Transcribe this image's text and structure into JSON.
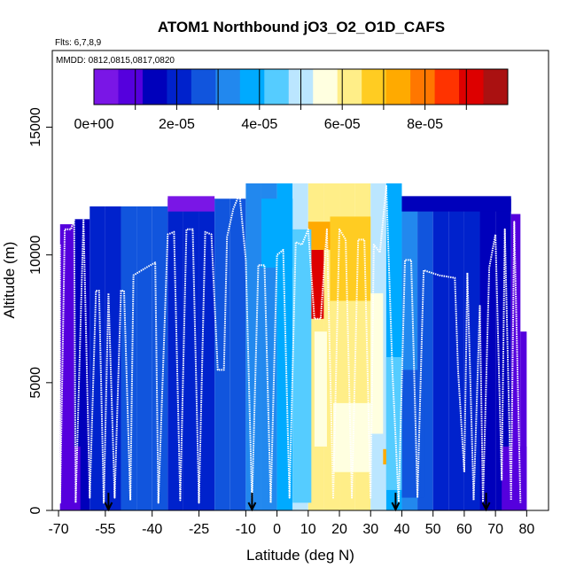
{
  "chart_data": {
    "type": "heatmap",
    "title": "ATOM1 Northbound jO3_O2_O1D_CAFS",
    "subtitle_flights": "Flts: 6,7,8,9",
    "subtitle_dates": "MMDD: 0812,0815,0817,0820",
    "xlabel": "Latitude (deg N)",
    "ylabel": "Altitude (m)",
    "xlim": [
      -72,
      87
    ],
    "ylim": [
      0,
      18000
    ],
    "x_ticks": [
      -70,
      -55,
      -40,
      -25,
      -10,
      0,
      10,
      20,
      30,
      40,
      50,
      60,
      70,
      80
    ],
    "x_tick_labels": [
      "-70",
      "-55",
      "-40",
      "-25",
      "-10",
      "0",
      "10",
      "20",
      "30",
      "40",
      "50",
      "60",
      "70",
      "80"
    ],
    "y_ticks": [
      0,
      5000,
      10000,
      15000
    ],
    "y_tick_labels": [
      "0",
      "5000",
      "10000",
      "15000"
    ],
    "colorbar": {
      "min": 0,
      "max": 0.0001,
      "tick_values": [
        0,
        2e-05,
        4e-05,
        6e-05,
        8e-05
      ],
      "tick_labels": [
        "0e+00",
        "2e-05",
        "4e-05",
        "6e-05",
        "8e-05"
      ],
      "colors": [
        "#7a16e6",
        "#5500dd",
        "#0000bb",
        "#0022cc",
        "#1155dd",
        "#2288ee",
        "#00aaff",
        "#55ccff",
        "#bbe6ff",
        "#ffffe0",
        "#ffee88",
        "#ffcc22",
        "#ffaa00",
        "#ff7700",
        "#ff3300",
        "#dd0000",
        "#aa1111"
      ]
    },
    "flight_markers_lat": [
      -54,
      -8,
      38,
      67
    ],
    "columns": [
      {
        "x0": -69.5,
        "x1": -65,
        "top": 11200,
        "v": 1e-05
      },
      {
        "x0": -65,
        "x1": -60,
        "top": 11400,
        "v": 1.2e-05
      },
      {
        "x0": -60,
        "x1": -55,
        "top": 11900,
        "v": 1.8e-05
      },
      {
        "x0": -55,
        "x1": -50,
        "top": 11900,
        "v": 2.2e-05
      },
      {
        "x0": -50,
        "x1": -45,
        "top": 11900,
        "v": 2.4e-05
      },
      {
        "x0": -45,
        "x1": -40,
        "top": 11900,
        "v": 2.4e-05
      },
      {
        "x0": -40,
        "x1": -35,
        "top": 11900,
        "v": 2.4e-05
      },
      {
        "x0": -35,
        "x1": -30,
        "top": 12200,
        "v": 2.2e-05
      },
      {
        "x0": -30,
        "x1": -25,
        "top": 12200,
        "v": 2e-05
      },
      {
        "x0": -25,
        "x1": -20,
        "top": 12200,
        "v": 2.2e-05
      },
      {
        "x0": -20,
        "x1": -15,
        "top": 12200,
        "v": 2.4e-05
      },
      {
        "x0": -15,
        "x1": -10,
        "top": 12200,
        "v": 2.6e-05
      },
      {
        "x0": -10,
        "x1": -5,
        "top": 12800,
        "v": 3e-05
      },
      {
        "x0": -5,
        "x1": 0,
        "top": 12800,
        "v": 3.4e-05
      },
      {
        "x0": 0,
        "x1": 5,
        "top": 12800,
        "v": 4e-05
      },
      {
        "x0": 5,
        "x1": 10,
        "top": 12800,
        "v": 4.8e-05
      },
      {
        "x0": 10,
        "x1": 15,
        "top": 12800,
        "v": 6.4e-05
      },
      {
        "x0": 15,
        "x1": 20,
        "top": 12800,
        "v": 6e-05
      },
      {
        "x0": 20,
        "x1": 25,
        "top": 12800,
        "v": 6.2e-05
      },
      {
        "x0": 25,
        "x1": 30,
        "top": 12800,
        "v": 6e-05
      },
      {
        "x0": 30,
        "x1": 35,
        "top": 12800,
        "v": 5.2e-05
      },
      {
        "x0": 35,
        "x1": 40,
        "top": 12800,
        "v": 4e-05
      },
      {
        "x0": 40,
        "x1": 45,
        "top": 12200,
        "v": 3e-05
      },
      {
        "x0": 45,
        "x1": 50,
        "top": 12200,
        "v": 2.4e-05
      },
      {
        "x0": 50,
        "x1": 55,
        "top": 12200,
        "v": 2.2e-05
      },
      {
        "x0": 55,
        "x1": 60,
        "top": 12200,
        "v": 2e-05
      },
      {
        "x0": 60,
        "x1": 65,
        "top": 12200,
        "v": 1.8e-05
      },
      {
        "x0": 65,
        "x1": 70,
        "top": 12200,
        "v": 1.6e-05
      },
      {
        "x0": 70,
        "x1": 75,
        "top": 12200,
        "v": 1.4e-05
      },
      {
        "x0": 75,
        "x1": 78,
        "top": 11600,
        "v": 1e-05
      },
      {
        "x0": 78,
        "x1": 80,
        "top": 7000,
        "v": 6e-06
      }
    ],
    "patches": [
      {
        "x0": 11,
        "x1": 15,
        "y0": 7500,
        "y1": 10200,
        "v": 9e-05
      },
      {
        "x0": 10,
        "x1": 18,
        "y0": 10200,
        "y1": 11300,
        "v": 7.2e-05
      },
      {
        "x0": 17,
        "x1": 30,
        "y0": 8200,
        "y1": 11500,
        "v": 6.8e-05
      },
      {
        "x0": 15,
        "x1": 30,
        "y0": 4200,
        "y1": 8200,
        "v": 6.2e-05
      },
      {
        "x0": 12,
        "x1": 16,
        "y0": 2500,
        "y1": 7000,
        "v": 5.6e-05
      },
      {
        "x0": 18,
        "x1": 30,
        "y0": 1500,
        "y1": 4200,
        "v": 5.8e-05
      },
      {
        "x0": 30,
        "x1": 34,
        "y0": 3000,
        "y1": 8500,
        "v": 5.4e-05
      },
      {
        "x0": 34,
        "x1": 35.5,
        "y0": 1800,
        "y1": 2400,
        "v": 7.2e-05
      },
      {
        "x0": 5,
        "x1": 11,
        "y0": 300,
        "y1": 11000,
        "v": 4.2e-05
      },
      {
        "x0": 35,
        "x1": 40,
        "y0": 800,
        "y1": 6000,
        "v": 4.4e-05
      },
      {
        "x0": -5,
        "x1": 5,
        "y0": 9500,
        "y1": 12200,
        "v": 3.8e-05
      },
      {
        "x0": 40,
        "x1": 47,
        "y0": 500,
        "y1": 5500,
        "v": 2.8e-05
      },
      {
        "x0": -69.5,
        "x1": -63,
        "y0": 0,
        "y1": 2500,
        "v": 8e-06
      },
      {
        "x0": 72,
        "x1": 80,
        "y0": 0,
        "y1": 2500,
        "v": 6e-06
      },
      {
        "x0": -35,
        "x1": -20,
        "y0": 11700,
        "y1": 12300,
        "v": 4e-06
      },
      {
        "x0": 40,
        "x1": 75,
        "y0": 11700,
        "y1": 12300,
        "v": 1.2e-05
      }
    ],
    "flight_track": [
      [
        -69.5,
        10400
      ],
      [
        -69.5,
        300
      ],
      [
        -68,
        11000
      ],
      [
        -66,
        11000
      ],
      [
        -65,
        11400
      ],
      [
        -64.5,
        300
      ],
      [
        -62,
        11400
      ],
      [
        -60,
        500
      ],
      [
        -58,
        8600
      ],
      [
        -57,
        8600
      ],
      [
        -55.5,
        300
      ],
      [
        -54,
        8500
      ],
      [
        -52,
        500
      ],
      [
        -50,
        8600
      ],
      [
        -49,
        8600
      ],
      [
        -47,
        400
      ],
      [
        -46,
        9200
      ],
      [
        -42,
        9500
      ],
      [
        -39,
        9700
      ],
      [
        -38,
        300
      ],
      [
        -35,
        10800
      ],
      [
        -33,
        10900
      ],
      [
        -31,
        400
      ],
      [
        -29,
        11000
      ],
      [
        -27,
        11000
      ],
      [
        -25,
        300
      ],
      [
        -23,
        10900
      ],
      [
        -21,
        10800
      ],
      [
        -19,
        5500
      ],
      [
        -17,
        5500
      ],
      [
        -16,
        10700
      ],
      [
        -14,
        11800
      ],
      [
        -12,
        12400
      ],
      [
        -10,
        9800
      ],
      [
        -8,
        300
      ],
      [
        -6,
        9600
      ],
      [
        -4,
        9600
      ],
      [
        -2,
        300
      ],
      [
        0,
        10000
      ],
      [
        2,
        10200
      ],
      [
        4,
        500
      ],
      [
        6,
        10500
      ],
      [
        8,
        10400
      ],
      [
        10,
        11000
      ],
      [
        12,
        7500
      ],
      [
        14,
        7500
      ],
      [
        16,
        11000
      ],
      [
        18,
        500
      ],
      [
        20,
        11000
      ],
      [
        22,
        10600
      ],
      [
        24,
        500
      ],
      [
        26,
        10600
      ],
      [
        28,
        10600
      ],
      [
        30,
        500
      ],
      [
        31,
        10400
      ],
      [
        33,
        10100
      ],
      [
        35,
        12700
      ],
      [
        37,
        5400
      ],
      [
        39,
        300
      ],
      [
        41,
        9800
      ],
      [
        43,
        9800
      ],
      [
        45,
        500
      ],
      [
        47,
        9400
      ],
      [
        52,
        9200
      ],
      [
        57,
        9100
      ],
      [
        58,
        5500
      ],
      [
        60,
        1500
      ],
      [
        61,
        9300
      ],
      [
        63,
        400
      ],
      [
        65,
        8000
      ],
      [
        66,
        300
      ],
      [
        68,
        9500
      ],
      [
        70,
        10800
      ],
      [
        72,
        1200
      ],
      [
        73,
        11000
      ],
      [
        75,
        400
      ],
      [
        76,
        11300
      ],
      [
        78,
        300
      ]
    ]
  }
}
